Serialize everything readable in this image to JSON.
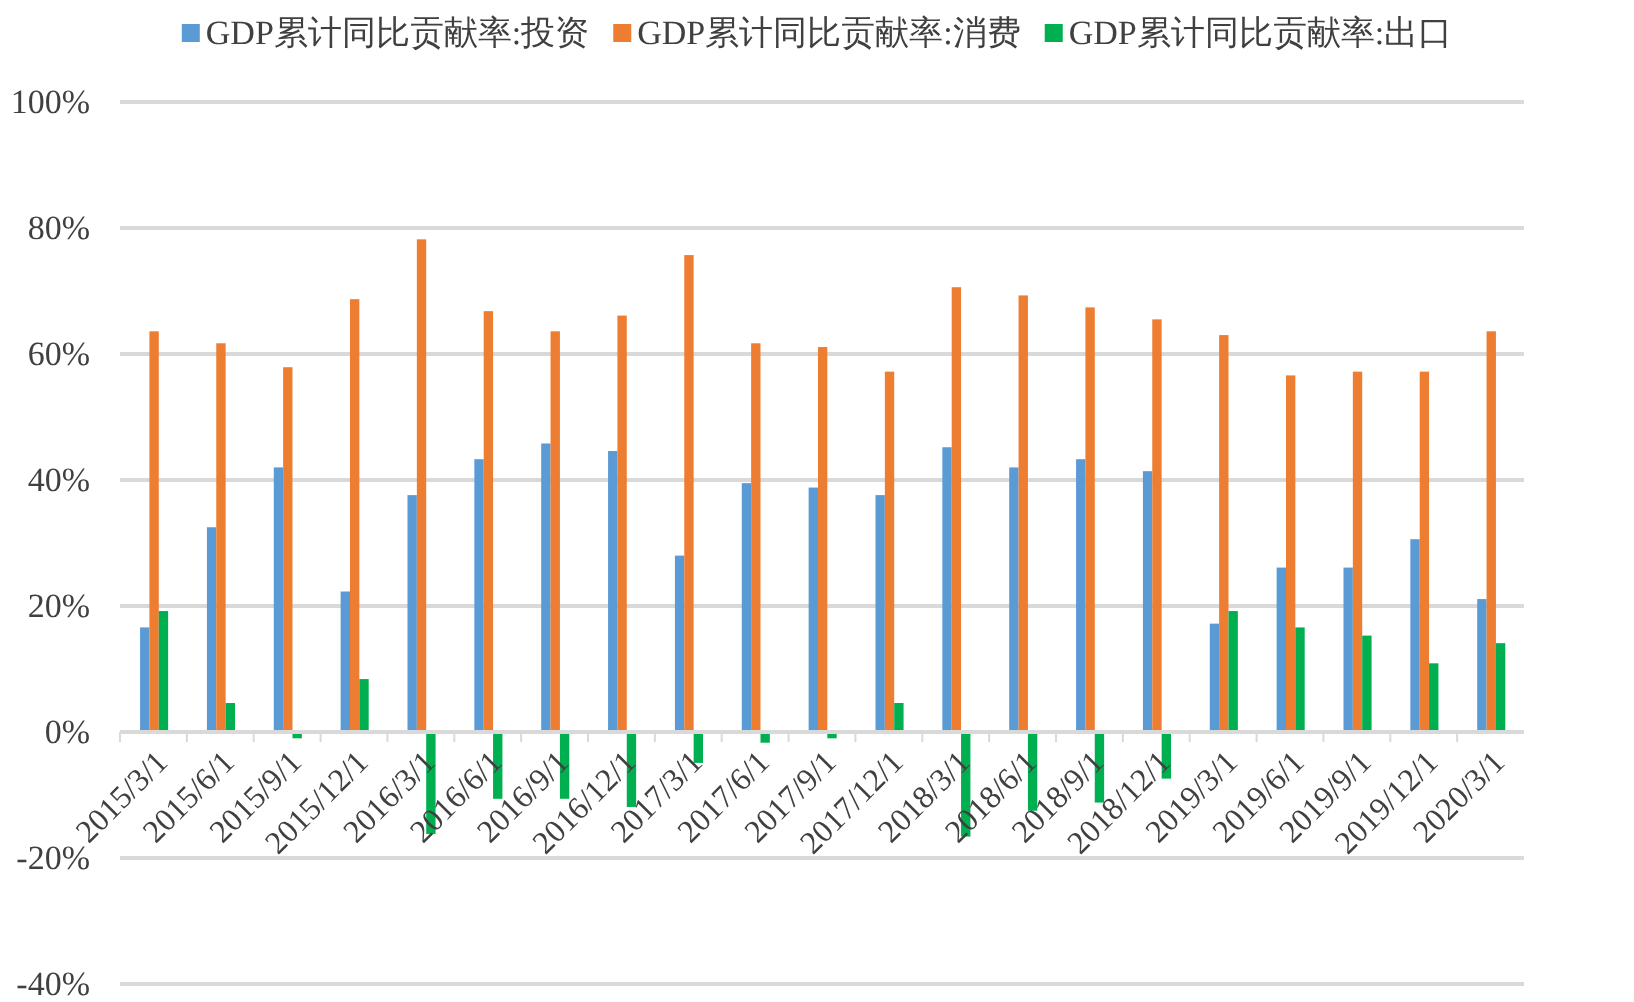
{
  "chart_data": {
    "type": "bar",
    "categories": [
      "2015/3/1",
      "2015/6/1",
      "2015/9/1",
      "2015/12/1",
      "2016/3/1",
      "2016/6/1",
      "2016/9/1",
      "2016/12/1",
      "2017/3/1",
      "2017/6/1",
      "2017/9/1",
      "2017/12/1",
      "2018/3/1",
      "2018/6/1",
      "2018/9/1",
      "2018/12/1",
      "2019/3/1",
      "2019/6/1",
      "2019/9/1",
      "2019/12/1",
      "2020/3/1"
    ],
    "series": [
      {
        "name": "GDP累计同比贡献率:投资",
        "color": "#5b9bd5",
        "values": [
          16.6,
          32.5,
          42.0,
          22.3,
          37.6,
          43.3,
          45.8,
          44.6,
          28.0,
          39.5,
          38.8,
          37.6,
          45.2,
          42.0,
          43.3,
          41.4,
          17.2,
          26.1,
          26.1,
          30.6,
          21.1
        ]
      },
      {
        "name": "GDP累计同比贡献率:消费",
        "color": "#ed7d31",
        "values": [
          63.6,
          61.7,
          57.9,
          68.7,
          78.2,
          66.8,
          63.6,
          66.1,
          75.7,
          61.7,
          61.1,
          57.2,
          70.6,
          69.3,
          67.4,
          65.5,
          63.0,
          56.6,
          57.2,
          57.2,
          63.6
        ]
      },
      {
        "name": "GDP累计同比贡献率:出口",
        "color": "#00b050",
        "values": [
          19.2,
          4.6,
          -1.0,
          8.4,
          -16.2,
          -10.6,
          -10.6,
          -11.9,
          -4.9,
          -1.7,
          -1.0,
          4.6,
          -16.6,
          -12.5,
          -11.2,
          -7.4,
          19.2,
          16.6,
          15.3,
          10.9,
          14.1
        ]
      }
    ],
    "ylim": [
      -40,
      100
    ],
    "yticks": [
      {
        "value": -40,
        "label": "-40%"
      },
      {
        "value": -20,
        "label": "-20%"
      },
      {
        "value": 0,
        "label": "0%"
      },
      {
        "value": 20,
        "label": "20%"
      },
      {
        "value": 40,
        "label": "40%"
      },
      {
        "value": 60,
        "label": "60%"
      },
      {
        "value": 80,
        "label": "80%"
      },
      {
        "value": 100,
        "label": "100%"
      }
    ],
    "grid": "y",
    "legend": "top"
  }
}
